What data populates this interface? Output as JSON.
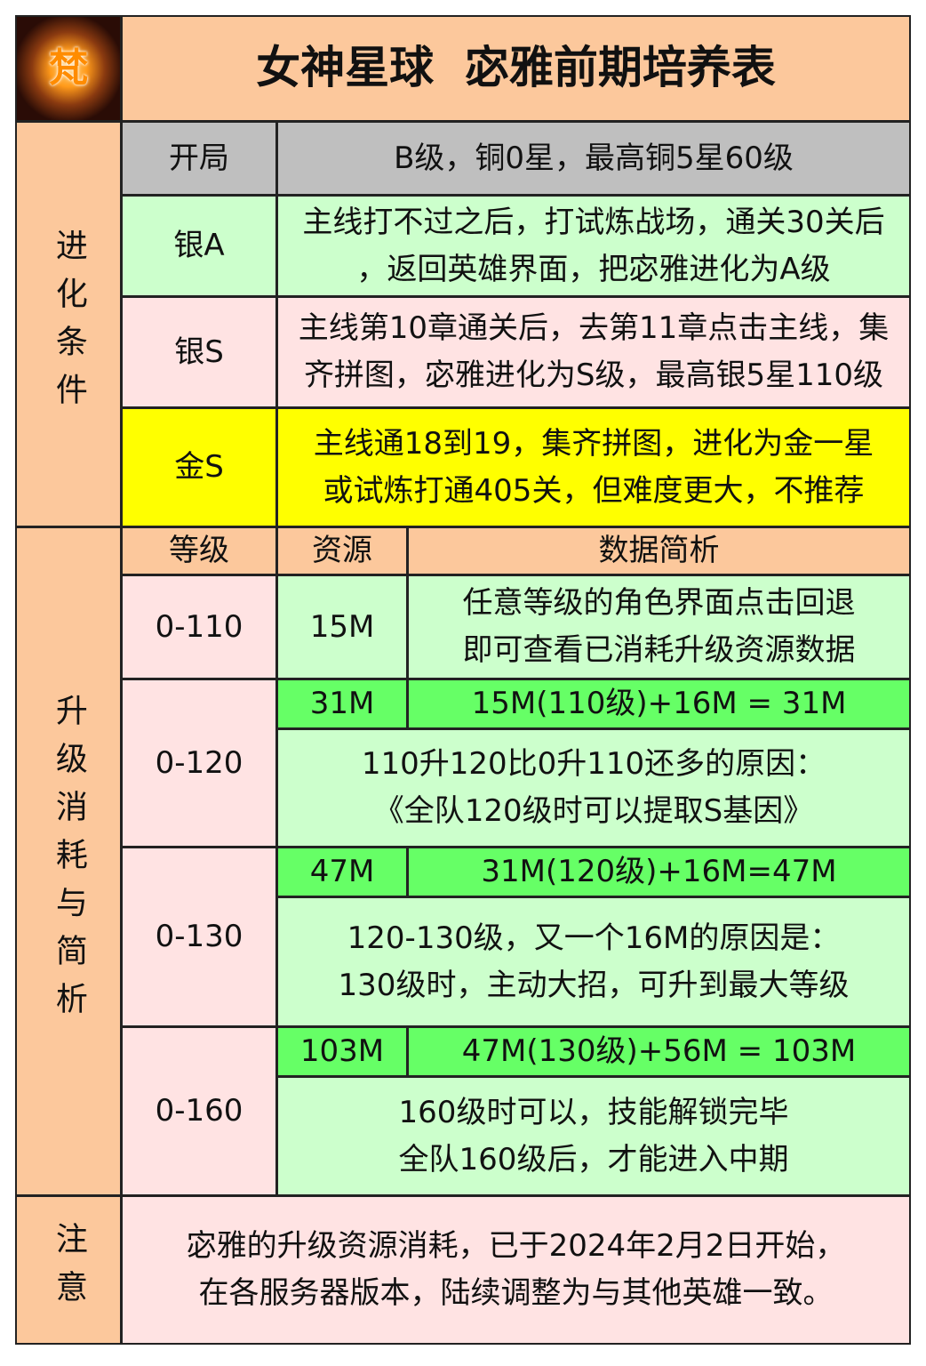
{
  "title": "女神星球  宓雅前期培养表",
  "logo_text": "梵",
  "evolution": {
    "section_label": "进化条件",
    "rows": [
      {
        "label": "开局",
        "text": [
          "B级，铜0星，最高铜5星60级"
        ]
      },
      {
        "label": "银A",
        "text": [
          "主线打不过之后，打试炼战场，通关30关后",
          "，返回英雄界面，把宓雅进化为A级"
        ]
      },
      {
        "label": "银S",
        "text": [
          "主线第10章通关后，去第11章点击主线，集",
          "齐拼图，宓雅进化为S级，最高银5星110级"
        ]
      },
      {
        "label": "金S",
        "text": [
          "主线通18到19，集齐拼图，进化为金一星",
          "或试炼打通405关，但难度更大，不推荐"
        ]
      }
    ]
  },
  "upgrade": {
    "section_label": "升级消耗与简析",
    "headers": [
      "等级",
      "资源",
      "数据简析"
    ],
    "rows": [
      {
        "level": "0-110",
        "resource": "15M",
        "analysis": [
          "任意等级的角色界面点击回退",
          "即可查看已消耗升级资源数据"
        ]
      },
      {
        "level": "0-120",
        "resource": "31M",
        "formula": "15M(110级)+16M = 31M",
        "note": [
          "110升120比0升110还多的原因：",
          "《全队120级时可以提取S基因》"
        ]
      },
      {
        "level": "0-130",
        "resource": "47M",
        "formula": "31M(120级)+16M=47M",
        "note": [
          "120-130级，又一个16M的原因是：",
          "130级时，主动大招，可升到最大等级"
        ]
      },
      {
        "level": "0-160",
        "resource": "103M",
        "formula": "47M(130级)+56M = 103M",
        "note": [
          "160级时可以，技能解锁完毕",
          "全队160级后，才能进入中期"
        ]
      }
    ]
  },
  "notice": {
    "label": "注意",
    "text": [
      "宓雅的升级资源消耗，已于2024年2月2日开始，",
      "在各服务器版本，陆续调整为与其他英雄一致。"
    ]
  },
  "colors": {
    "peach": "#fcc89c",
    "gray": "#bfbfbf",
    "light_green": "#ccffcc",
    "pink": "#ffe3e3",
    "yellow": "#ffff00",
    "bright_green": "#66ff66"
  }
}
